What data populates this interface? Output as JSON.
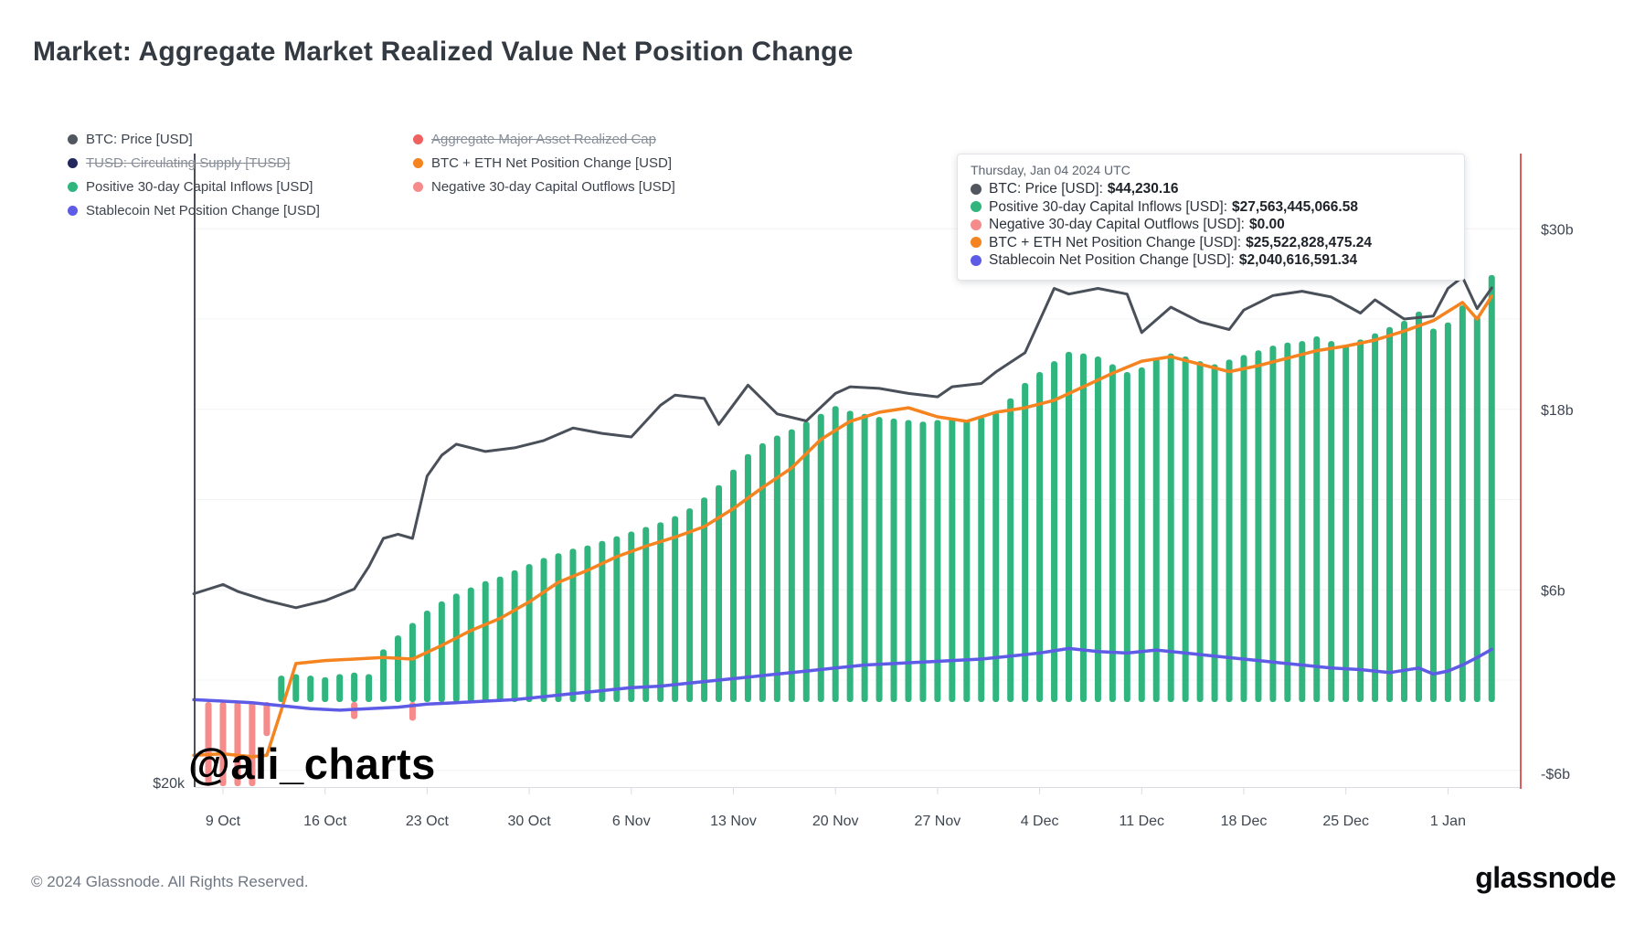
{
  "page": {
    "title": "Market: Aggregate Market Realized Value Net Position Change",
    "watermark": "@ali_charts",
    "footer": "© 2024 Glassnode. All Rights Reserved.",
    "logo": "glassnode"
  },
  "colors": {
    "btc_price": "#4a505a",
    "tusd": "#23285c",
    "positive_inflows": "#31b57e",
    "stablecoin": "#5e5ce6",
    "aggregate_realized_cap": "#ef6060",
    "btc_eth_npc": "#f5831f",
    "negative_outflows": "#f58b8b",
    "crosshair": "#e05c5c"
  },
  "legend": {
    "left": [
      {
        "label": "BTC: Price [USD]",
        "color": "#52575f",
        "disabled": false
      },
      {
        "label": "TUSD: Circulating Supply [TUSD]",
        "color": "#23285c",
        "disabled": true
      },
      {
        "label": "Positive 30-day Capital Inflows [USD]",
        "color": "#31b57e",
        "disabled": false
      },
      {
        "label": "Stablecoin Net Position Change [USD]",
        "color": "#5e5ce6",
        "disabled": false
      }
    ],
    "right": [
      {
        "label": "Aggregate Major Asset Realized Cap",
        "color": "#ef6060",
        "disabled": true
      },
      {
        "label": "BTC + ETH Net Position Change [USD]",
        "color": "#f5831f",
        "disabled": false
      },
      {
        "label": "Negative 30-day Capital Outflows [USD]",
        "color": "#f58b8b",
        "disabled": false
      }
    ]
  },
  "tooltip": {
    "date": "Thursday, Jan 04 2024 UTC",
    "rows": [
      {
        "label": "BTC: Price [USD]:",
        "value": "$44,230.16",
        "color": "#52575f"
      },
      {
        "label": "Positive 30-day Capital Inflows [USD]:",
        "value": "$27,563,445,066.58",
        "color": "#31b57e"
      },
      {
        "label": "Negative 30-day Capital Outflows [USD]:",
        "value": "$0.00",
        "color": "#f58b8b"
      },
      {
        "label": "BTC + ETH Net Position Change [USD]:",
        "value": "$25,522,828,475.24",
        "color": "#f5831f"
      },
      {
        "label": "Stablecoin Net Position Change [USD]:",
        "value": "$2,040,616,591.34",
        "color": "#5e5ce6"
      }
    ]
  },
  "axes": {
    "x_labels": [
      "9 Oct",
      "16 Oct",
      "23 Oct",
      "30 Oct",
      "6 Nov",
      "13 Nov",
      "20 Nov",
      "27 Nov",
      "4 Dec",
      "11 Dec",
      "18 Dec",
      "25 Dec",
      "1 Jan"
    ],
    "y_right": [
      {
        "label": "$30b",
        "value": 30
      },
      {
        "label": "$18b",
        "value": 18
      },
      {
        "label": "$6b",
        "value": 6
      },
      {
        "label": "-$6b",
        "value": -6
      }
    ],
    "y_left_label": "$20k"
  },
  "chart_data": {
    "type": "mixed",
    "title": "Market: Aggregate Market Realized Value Net Position Change",
    "x_unit": "days since 2023-10-09",
    "ylim_right_billions": [
      -7.2,
      31
    ],
    "grid_values_billions": [
      30,
      24,
      18,
      12,
      6,
      0,
      -6
    ],
    "legend_position": "top-left",
    "series": [
      {
        "name": "BTC: Price [USD]",
        "type": "line",
        "unit": "USD thousands",
        "color": "#4a505a",
        "points": [
          [
            -2,
            27.2
          ],
          [
            0,
            27.6
          ],
          [
            1,
            27.3
          ],
          [
            3,
            26.9
          ],
          [
            5,
            26.6
          ],
          [
            7,
            26.9
          ],
          [
            9,
            27.4
          ],
          [
            10,
            28.4
          ],
          [
            11,
            29.7
          ],
          [
            12,
            29.9
          ],
          [
            13,
            29.7
          ],
          [
            14,
            32.8
          ],
          [
            15,
            33.9
          ],
          [
            16,
            34.5
          ],
          [
            18,
            34.1
          ],
          [
            20,
            34.3
          ],
          [
            22,
            34.7
          ],
          [
            24,
            35.4
          ],
          [
            26,
            35.1
          ],
          [
            28,
            34.9
          ],
          [
            30,
            36.7
          ],
          [
            31,
            37.3
          ],
          [
            33,
            37.1
          ],
          [
            34,
            35.6
          ],
          [
            36,
            37.9
          ],
          [
            38,
            36.2
          ],
          [
            40,
            35.8
          ],
          [
            42,
            37.4
          ],
          [
            43,
            37.8
          ],
          [
            45,
            37.7
          ],
          [
            47,
            37.4
          ],
          [
            49,
            37.2
          ],
          [
            50,
            37.8
          ],
          [
            52,
            38.0
          ],
          [
            53,
            38.7
          ],
          [
            55,
            39.9
          ],
          [
            56,
            42.0
          ],
          [
            57,
            44.2
          ],
          [
            58,
            43.8
          ],
          [
            60,
            44.2
          ],
          [
            62,
            43.8
          ],
          [
            63,
            41.2
          ],
          [
            65,
            42.9
          ],
          [
            67,
            41.9
          ],
          [
            69,
            41.4
          ],
          [
            70,
            42.7
          ],
          [
            72,
            43.7
          ],
          [
            74,
            44.0
          ],
          [
            76,
            43.6
          ],
          [
            78,
            42.5
          ],
          [
            79,
            43.4
          ],
          [
            81,
            42.1
          ],
          [
            83,
            42.3
          ],
          [
            84,
            44.2
          ],
          [
            85,
            45.0
          ],
          [
            86,
            42.8
          ],
          [
            87,
            44.23
          ]
        ]
      },
      {
        "name": "Positive 30-day Capital Inflows [USD]",
        "type": "bar",
        "unit": "USD billions",
        "color": "#31b57e",
        "start_day": 4,
        "values": [
          1.7,
          1.8,
          1.7,
          1.6,
          1.8,
          1.9,
          1.8,
          3.4,
          4.3,
          5.1,
          5.9,
          6.5,
          7.0,
          7.4,
          7.8,
          8.1,
          8.5,
          8.9,
          9.3,
          9.6,
          9.9,
          10.1,
          10.4,
          10.7,
          11.0,
          11.3,
          11.6,
          12.0,
          12.5,
          13.2,
          14.0,
          15.0,
          16.0,
          16.7,
          17.2,
          17.6,
          18.1,
          18.6,
          19.1,
          18.8,
          18.6,
          18.4,
          18.3,
          18.2,
          18.1,
          18.2,
          18.3,
          18.2,
          18.4,
          18.7,
          19.6,
          20.6,
          21.3,
          22.0,
          22.6,
          22.5,
          22.3,
          21.8,
          21.3,
          21.6,
          22.2,
          22.5,
          22.3,
          22.0,
          21.8,
          22.1,
          22.4,
          22.7,
          23.0,
          23.2,
          23.3,
          23.6,
          23.3,
          23.0,
          23.4,
          23.8,
          24.2,
          24.6,
          25.2,
          24.1,
          24.5,
          25.6,
          24.9,
          27.56
        ]
      },
      {
        "name": "Negative 30-day Capital Outflows [USD]",
        "type": "bar",
        "unit": "USD billions",
        "color": "#f58b8b",
        "points": [
          [
            -1,
            -8
          ],
          [
            0,
            -8
          ],
          [
            1,
            -8
          ],
          [
            2,
            -8
          ],
          [
            3,
            -2.2
          ],
          [
            9,
            -1.1
          ],
          [
            13,
            -1.2
          ]
        ]
      },
      {
        "name": "BTC + ETH Net Position Change [USD]",
        "type": "line",
        "unit": "USD billions",
        "color": "#f5831f",
        "points": [
          [
            -2,
            -5.0
          ],
          [
            0,
            -4.9
          ],
          [
            2,
            -5.1
          ],
          [
            3,
            -5.0
          ],
          [
            4,
            -2.0
          ],
          [
            5,
            1.1
          ],
          [
            7,
            1.3
          ],
          [
            9,
            1.4
          ],
          [
            11,
            1.5
          ],
          [
            13,
            1.4
          ],
          [
            15,
            2.3
          ],
          [
            17,
            3.3
          ],
          [
            19,
            4.1
          ],
          [
            21,
            5.2
          ],
          [
            23,
            6.5
          ],
          [
            25,
            7.3
          ],
          [
            27,
            8.2
          ],
          [
            29,
            8.9
          ],
          [
            31,
            9.5
          ],
          [
            33,
            10.2
          ],
          [
            35,
            11.4
          ],
          [
            37,
            12.8
          ],
          [
            39,
            14.1
          ],
          [
            41,
            16.0
          ],
          [
            43,
            17.2
          ],
          [
            45,
            17.8
          ],
          [
            47,
            18.1
          ],
          [
            49,
            17.5
          ],
          [
            51,
            17.2
          ],
          [
            53,
            17.8
          ],
          [
            55,
            18.1
          ],
          [
            57,
            18.6
          ],
          [
            59,
            19.5
          ],
          [
            61,
            20.4
          ],
          [
            63,
            21.2
          ],
          [
            65,
            21.5
          ],
          [
            67,
            21.0
          ],
          [
            69,
            20.5
          ],
          [
            71,
            20.9
          ],
          [
            73,
            21.4
          ],
          [
            75,
            21.9
          ],
          [
            77,
            22.2
          ],
          [
            79,
            22.6
          ],
          [
            81,
            23.2
          ],
          [
            83,
            23.9
          ],
          [
            84,
            24.5
          ],
          [
            85,
            25.1
          ],
          [
            86,
            24.0
          ],
          [
            87,
            25.52
          ]
        ]
      },
      {
        "name": "Stablecoin Net Position Change [USD]",
        "type": "line",
        "unit": "USD billions",
        "color": "#5e5ce6",
        "points": [
          [
            -2,
            -1.3
          ],
          [
            0,
            -1.4
          ],
          [
            2,
            -1.5
          ],
          [
            4,
            -1.7
          ],
          [
            6,
            -1.9
          ],
          [
            8,
            -2.0
          ],
          [
            10,
            -1.9
          ],
          [
            12,
            -1.8
          ],
          [
            14,
            -1.6
          ],
          [
            16,
            -1.5
          ],
          [
            18,
            -1.4
          ],
          [
            20,
            -1.3
          ],
          [
            22,
            -1.1
          ],
          [
            24,
            -0.9
          ],
          [
            26,
            -0.7
          ],
          [
            28,
            -0.5
          ],
          [
            30,
            -0.4
          ],
          [
            32,
            -0.2
          ],
          [
            34,
            0.0
          ],
          [
            36,
            0.2
          ],
          [
            38,
            0.4
          ],
          [
            40,
            0.6
          ],
          [
            42,
            0.8
          ],
          [
            44,
            1.0
          ],
          [
            46,
            1.1
          ],
          [
            48,
            1.2
          ],
          [
            50,
            1.3
          ],
          [
            52,
            1.4
          ],
          [
            54,
            1.6
          ],
          [
            56,
            1.8
          ],
          [
            58,
            2.1
          ],
          [
            60,
            1.9
          ],
          [
            62,
            1.8
          ],
          [
            64,
            2.0
          ],
          [
            66,
            1.8
          ],
          [
            68,
            1.6
          ],
          [
            70,
            1.4
          ],
          [
            72,
            1.2
          ],
          [
            74,
            1.0
          ],
          [
            76,
            0.8
          ],
          [
            78,
            0.7
          ],
          [
            80,
            0.5
          ],
          [
            82,
            0.8
          ],
          [
            83,
            0.4
          ],
          [
            84,
            0.6
          ],
          [
            85,
            1.0
          ],
          [
            86,
            1.5
          ],
          [
            87,
            2.04
          ]
        ]
      }
    ],
    "hover": {
      "date": "Thursday, Jan 04 2024 UTC",
      "day": 87,
      "values": {
        "btc_price_usd": 44230.16,
        "positive_inflows_usd": 27563445066.58,
        "negative_outflows_usd": 0.0,
        "btc_eth_npc_usd": 25522828475.24,
        "stablecoin_npc_usd": 2040616591.34
      }
    }
  }
}
